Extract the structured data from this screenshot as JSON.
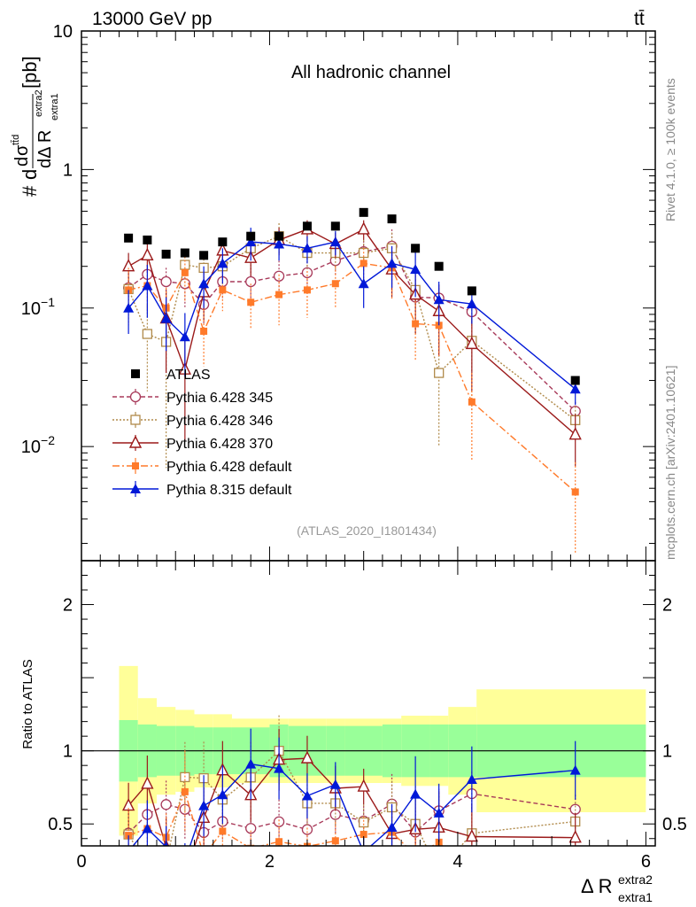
{
  "header": {
    "energy_label": "13000 GeV pp",
    "process_label": "tt̄"
  },
  "side_labels": {
    "rivet": "Rivet 4.1.0, ≥ 100k events",
    "mcplots": "mcplots.cern.ch [arXiv:2401.10621]"
  },
  "main_panel": {
    "title": "All hadronic channel",
    "analysis_tag": "(ATLAS_2020_I1801434)",
    "ylabel": {
      "num_d": "d",
      "num_sigma": "σ",
      "num_sup": "tt̄d",
      "den": "dΔ R",
      "den_sub": "extra1",
      "den_sup": "extra2",
      "hash": "#",
      "unit": "[pb]"
    },
    "y_ticks": [
      {
        "value": 10,
        "label": "10"
      },
      {
        "value": 1,
        "label": "1"
      },
      {
        "value": 0.1,
        "base": "10",
        "exp": "−1"
      },
      {
        "value": 0.01,
        "base": "10",
        "exp": "−2"
      }
    ]
  },
  "ratio_panel": {
    "ylabel": "Ratio to ATLAS",
    "y_ticks_left": [
      {
        "value": 2,
        "label": "2"
      },
      {
        "value": 1,
        "label": "1"
      },
      {
        "value": 0.5,
        "label": "0.5"
      }
    ],
    "y_ticks_right": [
      {
        "value": 2,
        "label": "2"
      },
      {
        "value": 1,
        "label": "1"
      },
      {
        "value": 0.5,
        "label": "0.5"
      }
    ]
  },
  "x_axis": {
    "label_main": "Δ R",
    "label_sub": "extra1",
    "label_sup": "extra2",
    "ticks": [
      {
        "value": 0,
        "label": "0"
      },
      {
        "value": 2,
        "label": "2"
      },
      {
        "value": 4,
        "label": "4"
      },
      {
        "value": 6,
        "label": "6"
      }
    ]
  },
  "legend": [
    {
      "label": "ATLAS"
    },
    {
      "label": "Pythia 6.428 345"
    },
    {
      "label": "Pythia 6.428 346"
    },
    {
      "label": "Pythia 6.428 370"
    },
    {
      "label": "Pythia 6.428 default"
    },
    {
      "label": "Pythia 8.315 default"
    }
  ],
  "chart_data": {
    "type": "scatter",
    "title": "All hadronic channel",
    "xlabel": "Δ R extra1 extra2",
    "ylabel": "#dσ(tt̄d)/dΔR [pb]",
    "xlim": [
      0,
      6.1
    ],
    "ylim": [
      0.0015,
      10
    ],
    "yscale": "log",
    "ratio_ylim": [
      0.35,
      2.3
    ],
    "x": [
      0.5,
      0.7,
      0.9,
      1.1,
      1.3,
      1.5,
      1.8,
      2.1,
      2.4,
      2.7,
      3.0,
      3.3,
      3.55,
      3.8,
      4.15,
      5.25
    ],
    "atlas": {
      "name": "ATLAS",
      "color": "#000000",
      "values": [
        0.32,
        0.31,
        0.245,
        0.25,
        0.24,
        0.3,
        0.33,
        0.33,
        0.39,
        0.39,
        0.49,
        0.44,
        0.27,
        0.2,
        0.133,
        0.03
      ],
      "band_inner": [
        0.21,
        0.18,
        0.17,
        0.17,
        0.16,
        0.16,
        0.16,
        0.18,
        0.17,
        0.17,
        0.17,
        0.18,
        0.18,
        0.18,
        0.18,
        0.18
      ],
      "band_outer": [
        0.58,
        0.36,
        0.3,
        0.28,
        0.25,
        0.25,
        0.22,
        0.22,
        0.22,
        0.22,
        0.22,
        0.22,
        0.24,
        0.24,
        0.3,
        0.42
      ],
      "band_edges": [
        0.4,
        0.6,
        0.8,
        1.0,
        1.2,
        1.4,
        1.6,
        2.0,
        2.2,
        2.6,
        2.8,
        3.2,
        3.4,
        3.7,
        3.9,
        4.2,
        6.0
      ]
    },
    "series": [
      {
        "name": "Pythia 6.428 345",
        "color": "#a83a5a",
        "marker": "open-circle",
        "dash": "5,3",
        "values": [
          0.14,
          0.175,
          0.155,
          0.15,
          0.106,
          0.155,
          0.155,
          0.17,
          0.18,
          0.22,
          0.255,
          0.28,
          0.12,
          0.118,
          0.094,
          0.018
        ],
        "errors": [
          0.025,
          0.03,
          0.04,
          0.05,
          0.03,
          0.04,
          0.04,
          0.05,
          0.05,
          0.05,
          0.05,
          0.09,
          0.04,
          0.03,
          0.02,
          0.003
        ]
      },
      {
        "name": "Pythia 6.428 346",
        "color": "#b08a4a",
        "marker": "open-square",
        "dash": "2,2",
        "values": [
          0.137,
          0.065,
          0.057,
          0.205,
          0.195,
          0.2,
          0.27,
          0.33,
          0.25,
          0.25,
          0.25,
          0.27,
          0.135,
          0.034,
          0.058,
          0.0155
        ],
        "errors": [
          0.03,
          0.04,
          0.05,
          0.06,
          0.06,
          0.06,
          0.08,
          0.08,
          0.06,
          0.06,
          0.06,
          0.08,
          0.07,
          0.024,
          0.04,
          0.004
        ]
      },
      {
        "name": "Pythia 6.428 370",
        "color": "#9b1a1a",
        "marker": "open-triangle",
        "dash": "",
        "values": [
          0.2,
          0.24,
          0.084,
          0.036,
          0.13,
          0.26,
          0.23,
          0.31,
          0.37,
          0.29,
          0.37,
          0.19,
          0.125,
          0.095,
          0.055,
          0.0122
        ],
        "errors": [
          0.05,
          0.06,
          0.05,
          0.025,
          0.05,
          0.06,
          0.06,
          0.07,
          0.06,
          0.06,
          0.06,
          0.07,
          0.06,
          0.05,
          0.03,
          0.005
        ]
      },
      {
        "name": "Pythia 6.428 default",
        "color": "#ff7a2a",
        "marker": "filled-square",
        "dash": "8,3,2,3",
        "values": [
          0.135,
          0.145,
          0.1,
          0.18,
          0.068,
          0.135,
          0.11,
          0.125,
          0.135,
          0.15,
          0.21,
          0.195,
          0.077,
          0.075,
          0.021,
          0.0047
        ],
        "errors": [
          0.06,
          0.05,
          0.04,
          0.07,
          0.03,
          0.04,
          0.04,
          0.05,
          0.05,
          0.05,
          0.06,
          0.08,
          0.035,
          0.03,
          0.013,
          0.003
        ]
      },
      {
        "name": "Pythia 8.315 default",
        "color": "#0018d8",
        "marker": "filled-triangle",
        "dash": "",
        "values": [
          0.1,
          0.145,
          0.084,
          0.062,
          0.15,
          0.21,
          0.3,
          0.29,
          0.27,
          0.3,
          0.15,
          0.21,
          0.19,
          0.115,
          0.107,
          0.026
        ],
        "errors": [
          0.035,
          0.06,
          0.035,
          0.03,
          0.05,
          0.06,
          0.08,
          0.07,
          0.06,
          0.06,
          0.05,
          0.07,
          0.07,
          0.04,
          0.03,
          0.006
        ]
      }
    ]
  }
}
